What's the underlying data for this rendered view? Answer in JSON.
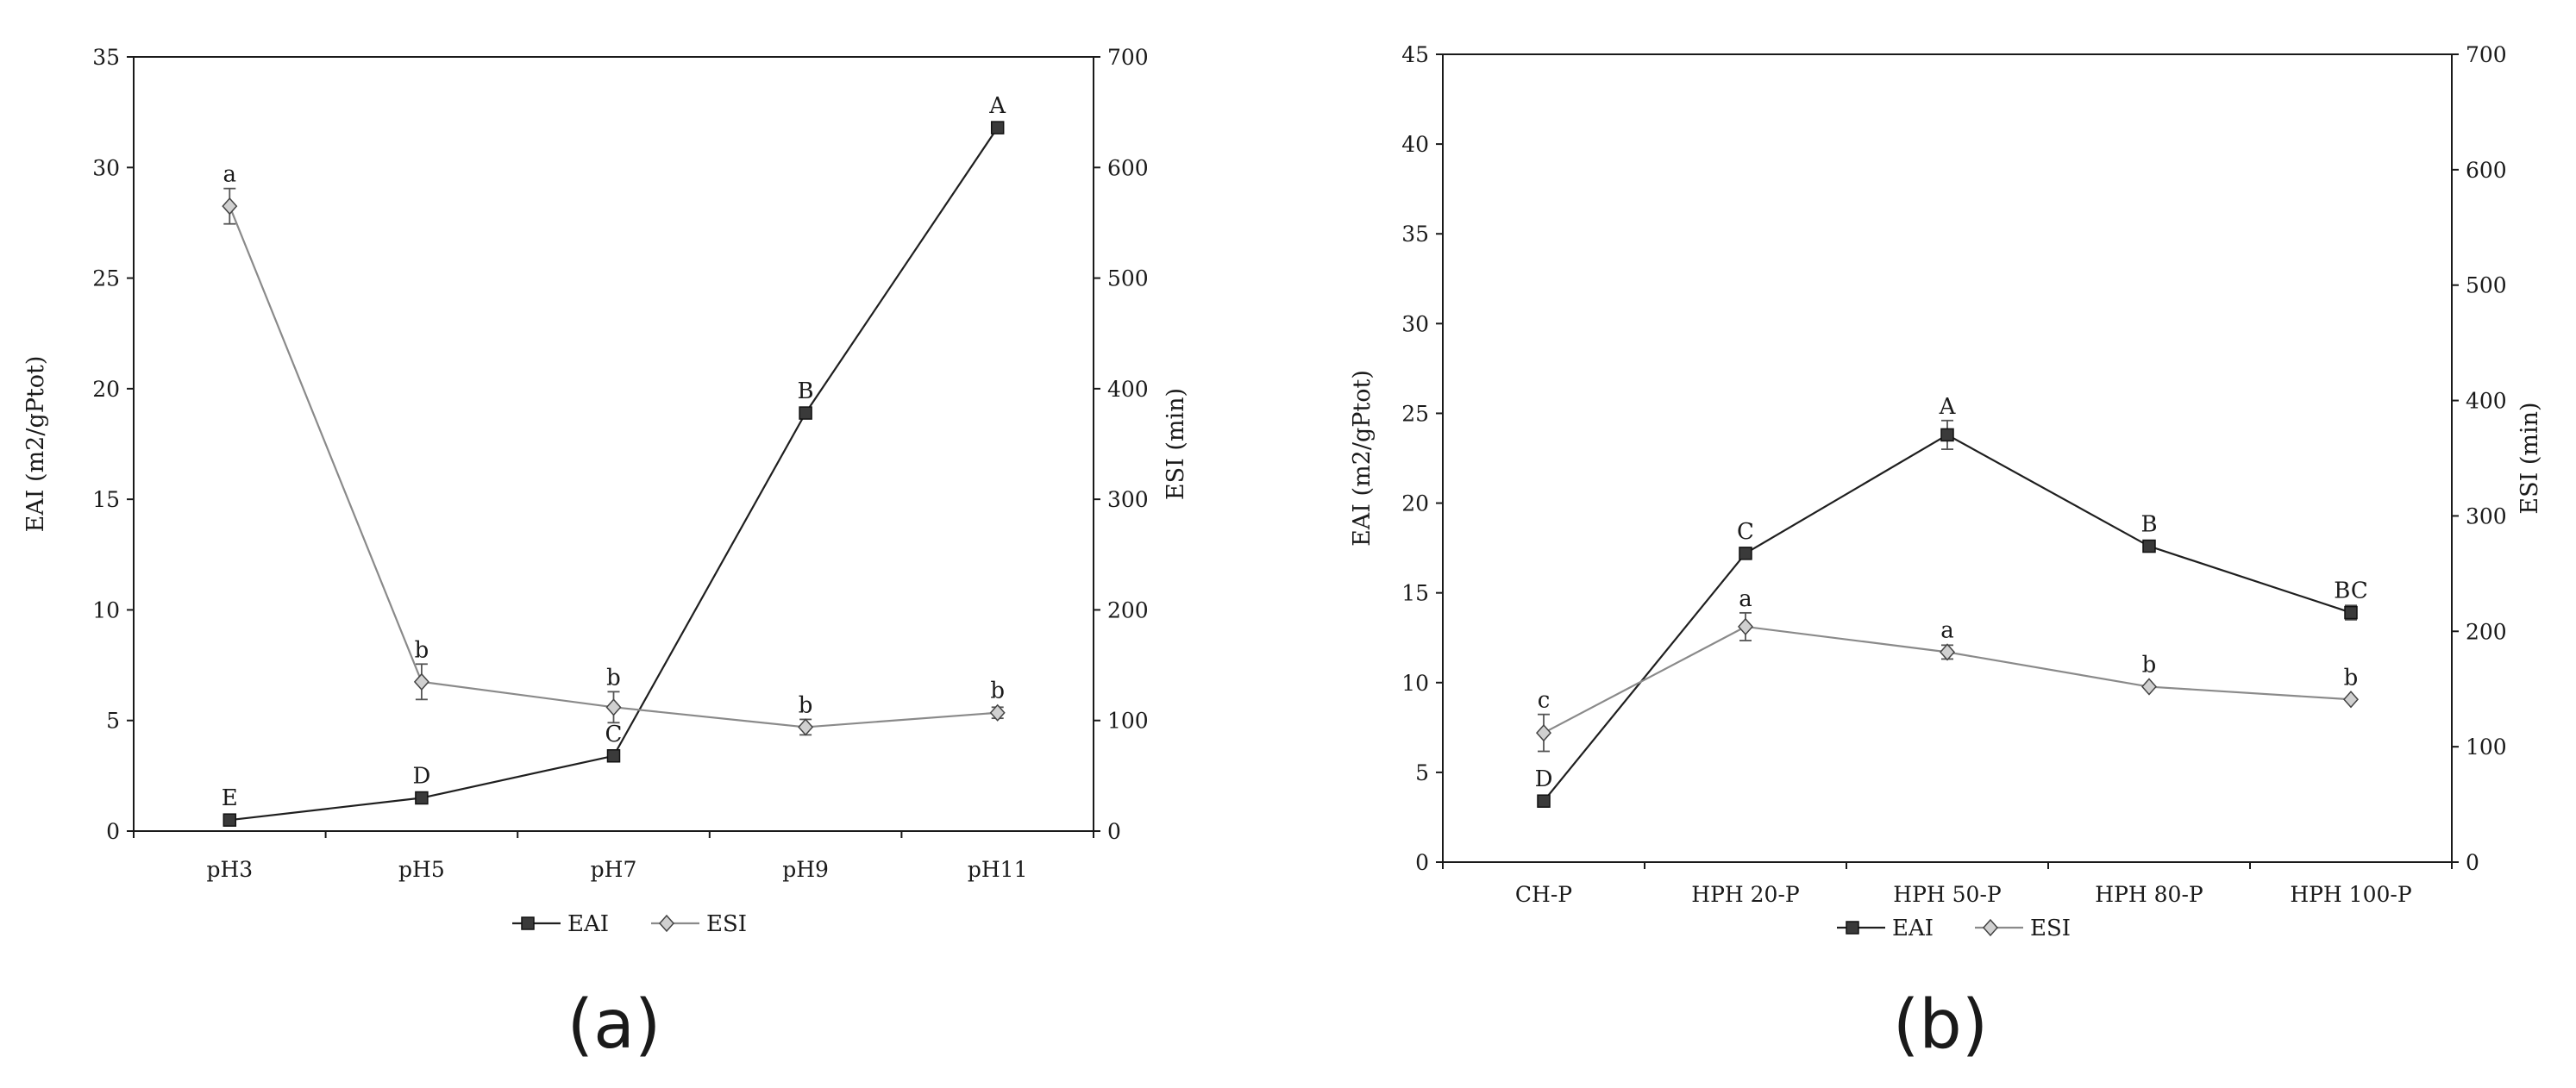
{
  "chart_data": [
    {
      "type": "line",
      "panel_label": "(a)",
      "categories": [
        "pH3",
        "pH5",
        "pH7",
        "pH9",
        "pH11"
      ],
      "ylabel": "EAI (m2/gPtot)",
      "y2label": "ESI (min)",
      "ylim": [
        0,
        35
      ],
      "yticks": [
        0,
        5,
        10,
        15,
        20,
        25,
        30,
        35
      ],
      "y2lim": [
        0,
        700
      ],
      "y2ticks": [
        0,
        100,
        200,
        300,
        400,
        500,
        600,
        700
      ],
      "grid": false,
      "legend_position": "bottom",
      "series": [
        {
          "name": "EAI",
          "axis": "left",
          "marker": "square",
          "color": "#1f1f1f",
          "marker_fill": "#3a3a3a",
          "values": [
            0.5,
            1.5,
            3.4,
            18.9,
            31.8
          ],
          "errors": [
            0,
            0,
            0,
            0,
            0
          ],
          "labels": [
            "E",
            "D",
            "C",
            "B",
            "A"
          ]
        },
        {
          "name": "ESI",
          "axis": "right",
          "marker": "diamond",
          "color": "#8a8a8a",
          "marker_fill": "#d0d0d0",
          "values": [
            565,
            135,
            112,
            94,
            107
          ],
          "errors": [
            16,
            16,
            14,
            7,
            5
          ],
          "labels": [
            "a",
            "b",
            "b",
            "b",
            "b"
          ]
        }
      ]
    },
    {
      "type": "line",
      "panel_label": "(b)",
      "categories": [
        "CH-P",
        "HPH 20-P",
        "HPH 50-P",
        "HPH 80-P",
        "HPH 100-P"
      ],
      "ylabel": "EAI (m2/gPtot)",
      "y2label": "ESI (min)",
      "ylim": [
        0,
        45
      ],
      "yticks": [
        0,
        5,
        10,
        15,
        20,
        25,
        30,
        35,
        40,
        45
      ],
      "y2lim": [
        0,
        700
      ],
      "y2ticks": [
        0,
        100,
        200,
        300,
        400,
        500,
        600,
        700
      ],
      "grid": false,
      "legend_position": "bottom",
      "series": [
        {
          "name": "EAI",
          "axis": "left",
          "marker": "square",
          "color": "#1f1f1f",
          "marker_fill": "#3a3a3a",
          "values": [
            3.4,
            17.2,
            23.8,
            17.6,
            13.9
          ],
          "errors": [
            0,
            0,
            0.8,
            0,
            0.4
          ],
          "labels": [
            "D",
            "C",
            "A",
            "B",
            "BC"
          ]
        },
        {
          "name": "ESI",
          "axis": "right",
          "marker": "diamond",
          "color": "#8a8a8a",
          "marker_fill": "#d0d0d0",
          "values": [
            112,
            204,
            182,
            152,
            141
          ],
          "errors": [
            16,
            12,
            6,
            0,
            0
          ],
          "labels": [
            "c",
            "a",
            "a",
            "b",
            "b"
          ]
        }
      ]
    }
  ]
}
